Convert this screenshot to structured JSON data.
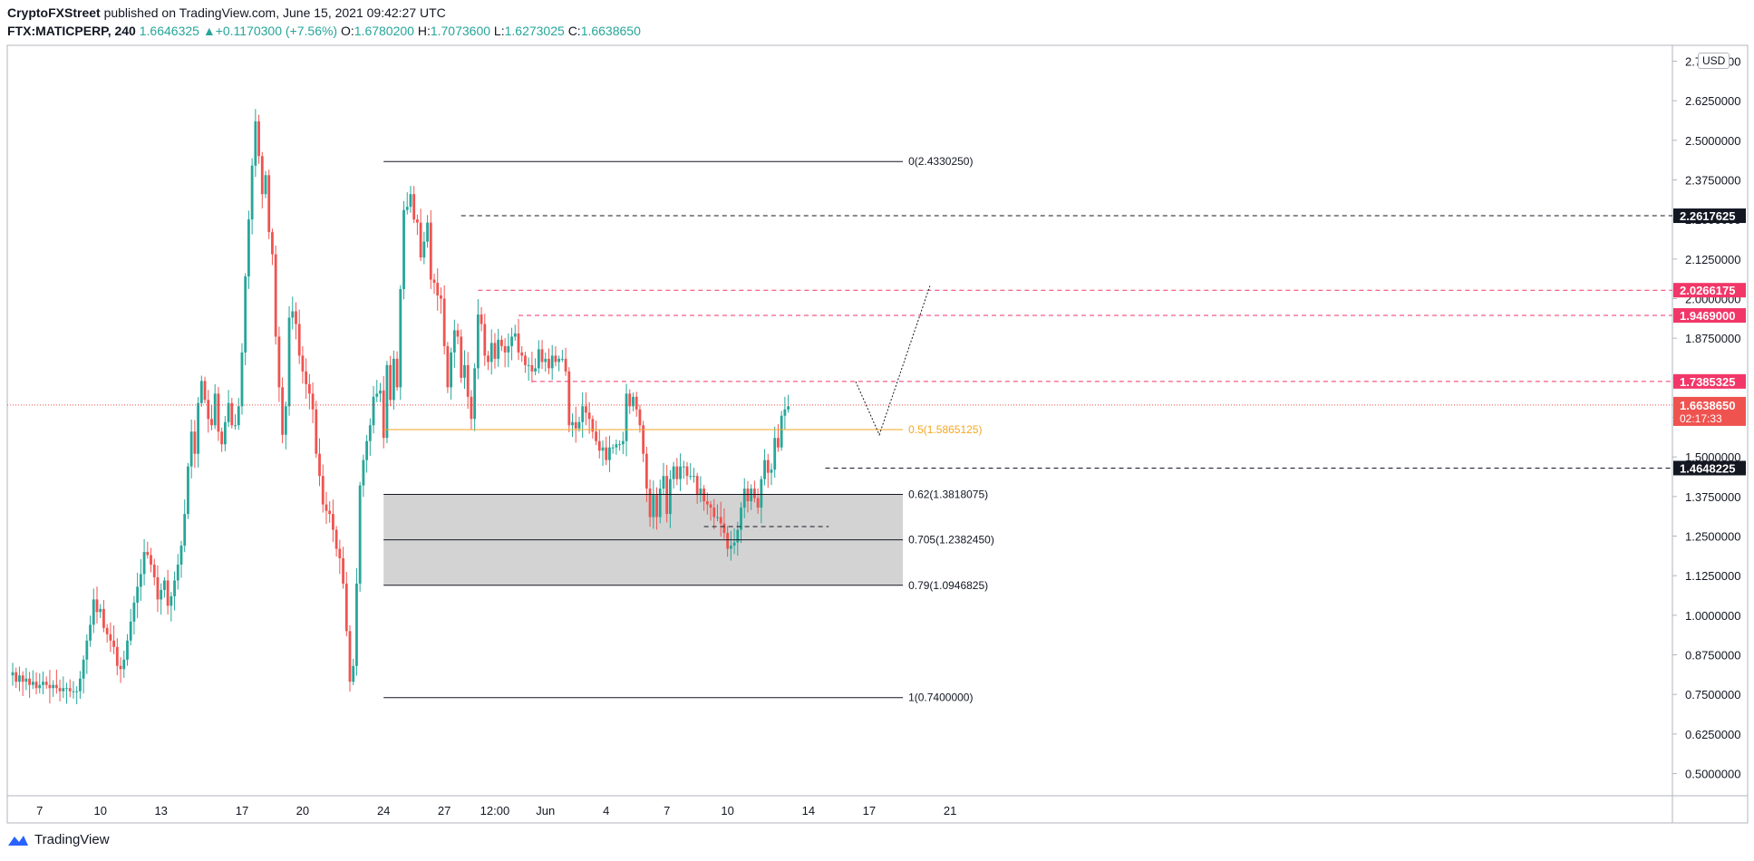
{
  "header": {
    "publisher": "CryptoFXStreet",
    "published_text": "published on TradingView.com, June 15, 2021 09:42:27 UTC",
    "symbol": "FTX:MATICPERP, 240",
    "last": "1.6646325",
    "change_arrow": "▲",
    "change": "+0.1170300 (+7.56%)",
    "o_label": "O:",
    "o": "1.6780200",
    "h_label": "H:",
    "h": "1.7073600",
    "l_label": "L:",
    "l": "1.6273025",
    "c_label": "C:",
    "c": "1.6638650"
  },
  "currency": "USD",
  "footer": {
    "brand": "TradingView",
    "logo_icon": "tradingview-logo-icon"
  },
  "colors": {
    "up": "#26a69a",
    "down": "#ef5350",
    "fib_mid": "#f5a623",
    "resistance": "#f23668",
    "zone": "#d1d1d1"
  },
  "chart_data": {
    "type": "candlestick",
    "ylim": [
      0.43,
      2.8
    ],
    "y_ticks": [
      "0.5000000",
      "0.6250000",
      "0.7500000",
      "0.8750000",
      "1.0000000",
      "1.1250000",
      "1.2500000",
      "1.3750000",
      "1.5000000",
      "1.6250000",
      "1.7500000",
      "1.8750000",
      "2.0000000",
      "2.1250000",
      "2.2500000",
      "2.3750000",
      "2.5000000",
      "2.6250000",
      "2.7500000"
    ],
    "x_labels": [
      {
        "text": "7",
        "i": 8
      },
      {
        "text": "10",
        "i": 26
      },
      {
        "text": "13",
        "i": 44
      },
      {
        "text": "17",
        "i": 68
      },
      {
        "text": "20",
        "i": 86
      },
      {
        "text": "24",
        "i": 110
      },
      {
        "text": "27",
        "i": 128
      },
      {
        "text": "12:00",
        "i": 143
      },
      {
        "text": "Jun",
        "i": 158
      },
      {
        "text": "4",
        "i": 176
      },
      {
        "text": "7",
        "i": 194
      },
      {
        "text": "10",
        "i": 212
      },
      {
        "text": "14",
        "i": 236
      },
      {
        "text": "17",
        "i": 254
      },
      {
        "text": "21",
        "i": 278
      }
    ],
    "candles_close": [
      0.82,
      0.79,
      0.81,
      0.79,
      0.8,
      0.78,
      0.79,
      0.77,
      0.78,
      0.79,
      0.78,
      0.77,
      0.78,
      0.77,
      0.76,
      0.77,
      0.77,
      0.76,
      0.76,
      0.76,
      0.8,
      0.86,
      0.92,
      0.97,
      1.05,
      1.01,
      1.02,
      0.96,
      0.94,
      0.92,
      0.9,
      0.84,
      0.83,
      0.86,
      0.92,
      0.98,
      1.04,
      1.09,
      1.13,
      1.2,
      1.19,
      1.16,
      1.12,
      1.05,
      1.08,
      1.11,
      1.03,
      1.06,
      1.11,
      1.16,
      1.22,
      1.32,
      1.47,
      1.58,
      1.51,
      1.67,
      1.74,
      1.68,
      1.62,
      1.6,
      1.7,
      1.58,
      1.54,
      1.61,
      1.67,
      1.6,
      1.6,
      1.66,
      1.83,
      2.07,
      2.25,
      2.42,
      2.56,
      2.45,
      2.33,
      2.39,
      2.21,
      2.14,
      1.88,
      1.72,
      1.57,
      1.66,
      1.94,
      1.96,
      1.92,
      1.82,
      1.77,
      1.73,
      1.7,
      1.65,
      1.51,
      1.44,
      1.35,
      1.33,
      1.32,
      1.27,
      1.21,
      1.18,
      1.1,
      0.95,
      0.79,
      0.84,
      1.1,
      1.41,
      1.49,
      1.55,
      1.6,
      1.69,
      1.7,
      1.71,
      1.56,
      1.79,
      1.68,
      1.81,
      1.72,
      2.03,
      2.28,
      2.29,
      2.33,
      2.25,
      2.24,
      2.13,
      2.18,
      2.24,
      2.06,
      2.05,
      2.01,
      2.0,
      1.85,
      1.72,
      1.83,
      1.9,
      1.88,
      1.75,
      1.79,
      1.69,
      1.62,
      1.78,
      1.95,
      1.92,
      1.82,
      1.8,
      1.86,
      1.81,
      1.87,
      1.85,
      1.83,
      1.85,
      1.88,
      1.89,
      1.83,
      1.82,
      1.79,
      1.79,
      1.77,
      1.78,
      1.84,
      1.8,
      1.81,
      1.78,
      1.82,
      1.8,
      1.81,
      1.81,
      1.77,
      1.6,
      1.61,
      1.59,
      1.61,
      1.66,
      1.64,
      1.62,
      1.58,
      1.55,
      1.52,
      1.53,
      1.49,
      1.53,
      1.53,
      1.54,
      1.54,
      1.55,
      1.7,
      1.66,
      1.69,
      1.65,
      1.6,
      1.51,
      1.4,
      1.31,
      1.38,
      1.31,
      1.4,
      1.44,
      1.32,
      1.43,
      1.47,
      1.43,
      1.47,
      1.47,
      1.44,
      1.44,
      1.44,
      1.38,
      1.4,
      1.36,
      1.35,
      1.34,
      1.31,
      1.31,
      1.29,
      1.26,
      1.21,
      1.22,
      1.23,
      1.27,
      1.34,
      1.4,
      1.36,
      1.4,
      1.37,
      1.34,
      1.43,
      1.49,
      1.45,
      1.46,
      1.56,
      1.53,
      1.63,
      1.65,
      1.66
    ],
    "levels": [
      {
        "price": 2.433025,
        "label": "0(2.4330250)",
        "color": "#131722",
        "style": "solid",
        "x_start": 110,
        "x_end": 264
      },
      {
        "price": 1.5865125,
        "label": "0.5(1.5865125)",
        "color": "#f5a623",
        "style": "solid",
        "x_start": 110,
        "x_end": 264
      },
      {
        "price": 1.3818075,
        "label": "0.62(1.3818075)",
        "color": "#131722",
        "style": "solid",
        "x_start": 110,
        "x_end": 264
      },
      {
        "price": 1.238245,
        "label": "0.705(1.2382450)",
        "color": "#131722",
        "style": "solid",
        "x_start": 110,
        "x_end": 264
      },
      {
        "price": 1.0946825,
        "label": "0.79(1.0946825)",
        "color": "#131722",
        "style": "solid",
        "x_start": 110,
        "x_end": 264
      },
      {
        "price": 0.74,
        "label": "1(0.7400000)",
        "color": "#131722",
        "style": "solid",
        "x_start": 110,
        "x_end": 264
      }
    ],
    "zone": {
      "top": 1.3818075,
      "bottom": 1.0946825,
      "x_start": 110,
      "x_end": 264
    },
    "hlines": [
      {
        "price": 2.2617625,
        "label": "2.2617625",
        "color": "#131722",
        "x_start": 133
      },
      {
        "price": 2.0266175,
        "label": "2.0266175",
        "color": "#f23668",
        "x_start": 138
      },
      {
        "price": 1.9469,
        "label": "1.9469000",
        "color": "#f23668",
        "x_start": 150
      },
      {
        "price": 1.7385325,
        "label": "1.7385325",
        "color": "#f23668",
        "x_start": 154
      },
      {
        "price": 1.4648225,
        "label": "1.4648225",
        "color": "#131722",
        "x_start": 241
      }
    ],
    "support_short": {
      "price": 1.28,
      "x_start": 205,
      "x_end": 242
    },
    "current": {
      "price": 1.663865,
      "label": "1.6638650",
      "countdown": "02:17:33",
      "color": "#ef5350"
    },
    "projection": [
      {
        "i": 250,
        "y": 1.738
      },
      {
        "i": 257,
        "y": 1.57
      },
      {
        "i": 272,
        "y": 2.04
      }
    ]
  }
}
